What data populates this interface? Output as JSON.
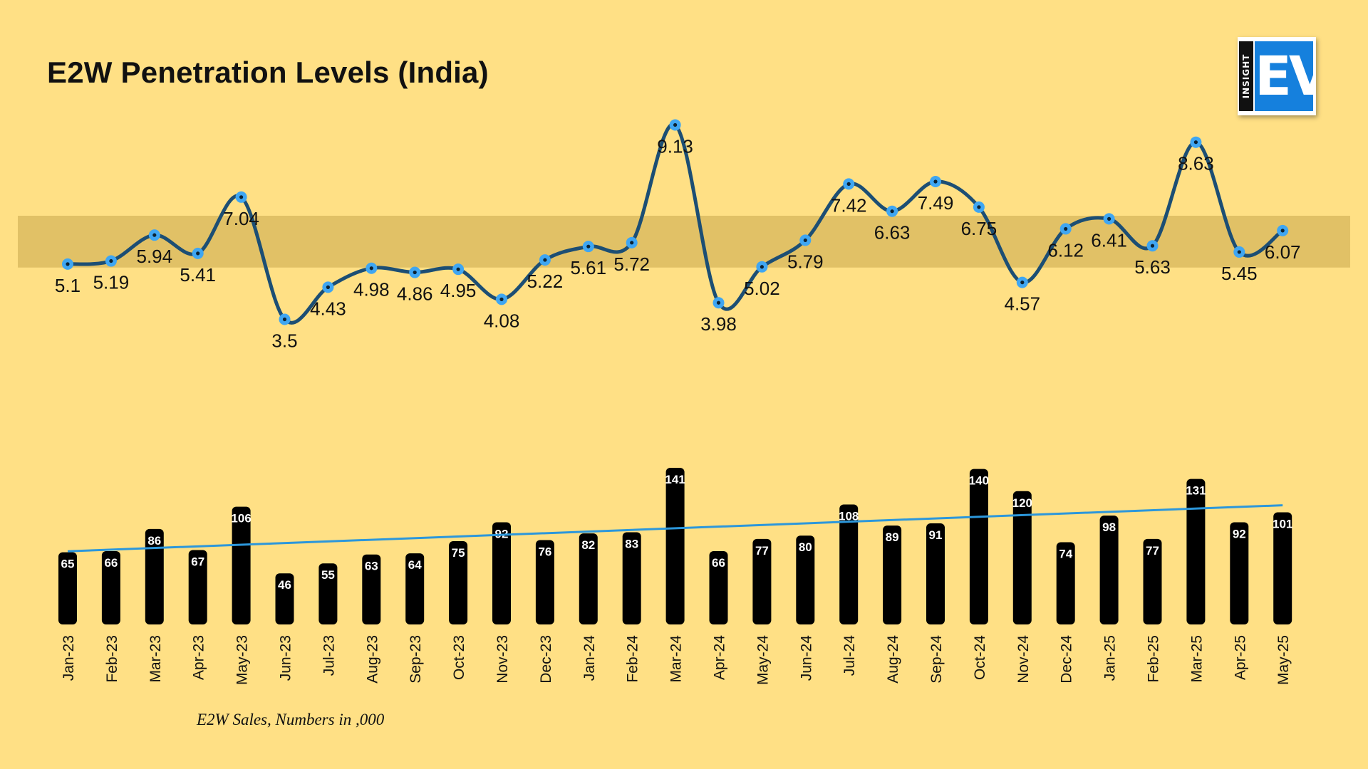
{
  "title": "E2W Penetration Levels (India)",
  "footnote": "E2W Sales, Numbers in ,000",
  "logo": {
    "small_text": "INSIGHT",
    "big_text": "EV"
  },
  "colors": {
    "background": "#FFE085",
    "line": "#1C4E74",
    "marker": "#3FA6F2",
    "bar": "#000000",
    "trend": "#2C97DB",
    "band": "#C9A74C"
  },
  "chart_data": [
    {
      "type": "line",
      "title": "E2W Penetration Levels (India)",
      "categories": [
        "Jan-23",
        "Feb-23",
        "Mar-23",
        "Apr-23",
        "May-23",
        "Jun-23",
        "Jul-23",
        "Aug-23",
        "Sep-23",
        "Oct-23",
        "Nov-23",
        "Dec-23",
        "Jan-24",
        "Feb-24",
        "Mar-24",
        "Apr-24",
        "May-24",
        "Jun-24",
        "Jul-24",
        "Aug-24",
        "Sep-24",
        "Oct-24",
        "Nov-24",
        "Dec-24",
        "Jan-25",
        "Feb-25",
        "Mar-25",
        "Apr-25",
        "May-25"
      ],
      "values": [
        5.1,
        5.19,
        5.94,
        5.41,
        7.04,
        3.5,
        4.43,
        4.98,
        4.86,
        4.95,
        4.08,
        5.22,
        5.61,
        5.72,
        9.13,
        3.98,
        5.02,
        5.79,
        7.42,
        6.63,
        7.49,
        6.75,
        4.57,
        6.12,
        6.41,
        5.63,
        8.63,
        5.45,
        6.07
      ],
      "labels": [
        "5.1",
        "5.19",
        "5.94",
        "5.41",
        "7.04",
        "3.5",
        "4.43",
        "4.98",
        "4.86",
        "4.95",
        "4.08",
        "5.22",
        "5.61",
        "5.72",
        "9.13",
        "3.98",
        "5.02",
        "5.79",
        "7.42",
        "6.63",
        "7.49",
        "6.75",
        "4.57",
        "6.12",
        "6.41",
        "5.63",
        "8.63",
        "5.45",
        "6.07"
      ],
      "highlight_band": [
        5.0,
        6.5
      ],
      "grid": false,
      "legend": "none"
    },
    {
      "type": "bar",
      "categories": [
        "Jan-23",
        "Feb-23",
        "Mar-23",
        "Apr-23",
        "May-23",
        "Jun-23",
        "Jul-23",
        "Aug-23",
        "Sep-23",
        "Oct-23",
        "Nov-23",
        "Dec-23",
        "Jan-24",
        "Feb-24",
        "Mar-24",
        "Apr-24",
        "May-24",
        "Jun-24",
        "Jul-24",
        "Aug-24",
        "Sep-24",
        "Oct-24",
        "Nov-24",
        "Dec-24",
        "Jan-25",
        "Feb-25",
        "Mar-25",
        "Apr-25",
        "May-25"
      ],
      "values": [
        65,
        66,
        86,
        67,
        106,
        46,
        55,
        63,
        64,
        75,
        92,
        76,
        82,
        83,
        141,
        66,
        77,
        80,
        108,
        89,
        91,
        140,
        120,
        74,
        98,
        77,
        131,
        92,
        101
      ],
      "labels": [
        "65",
        "66",
        "86",
        "67",
        "106",
        "46",
        "55",
        "63",
        "64",
        "75",
        "92",
        "76",
        "82",
        "83",
        "141",
        "66",
        "77",
        "80",
        "108",
        "89",
        "91",
        "140",
        "120",
        "74",
        "98",
        "77",
        "131",
        "92",
        "101"
      ],
      "xlabel": "E2W Sales, Numbers in ,000",
      "trendline": "linear",
      "grid": false,
      "legend": "none"
    }
  ]
}
